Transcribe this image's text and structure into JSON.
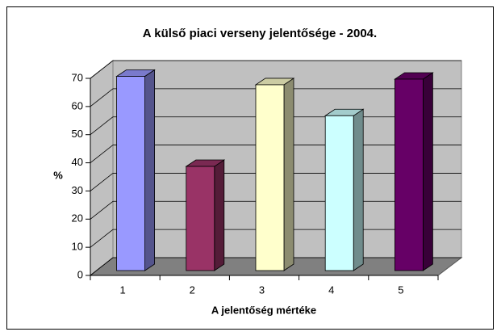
{
  "chart_data": {
    "type": "bar3d",
    "title": "A külső piaci verseny jelentősége - 2004.",
    "x_label": "A jelentőség mértéke",
    "y_label": "%",
    "categories": [
      "1",
      "2",
      "3",
      "4",
      "5"
    ],
    "values": [
      69,
      37,
      66,
      55,
      68
    ],
    "colors": [
      "#9999ff",
      "#993366",
      "#ffffcc",
      "#ccffff",
      "#660066"
    ],
    "ylim": [
      0,
      70
    ],
    "yticks": [
      0,
      10,
      20,
      30,
      40,
      50,
      60,
      70
    ],
    "grid": true
  }
}
